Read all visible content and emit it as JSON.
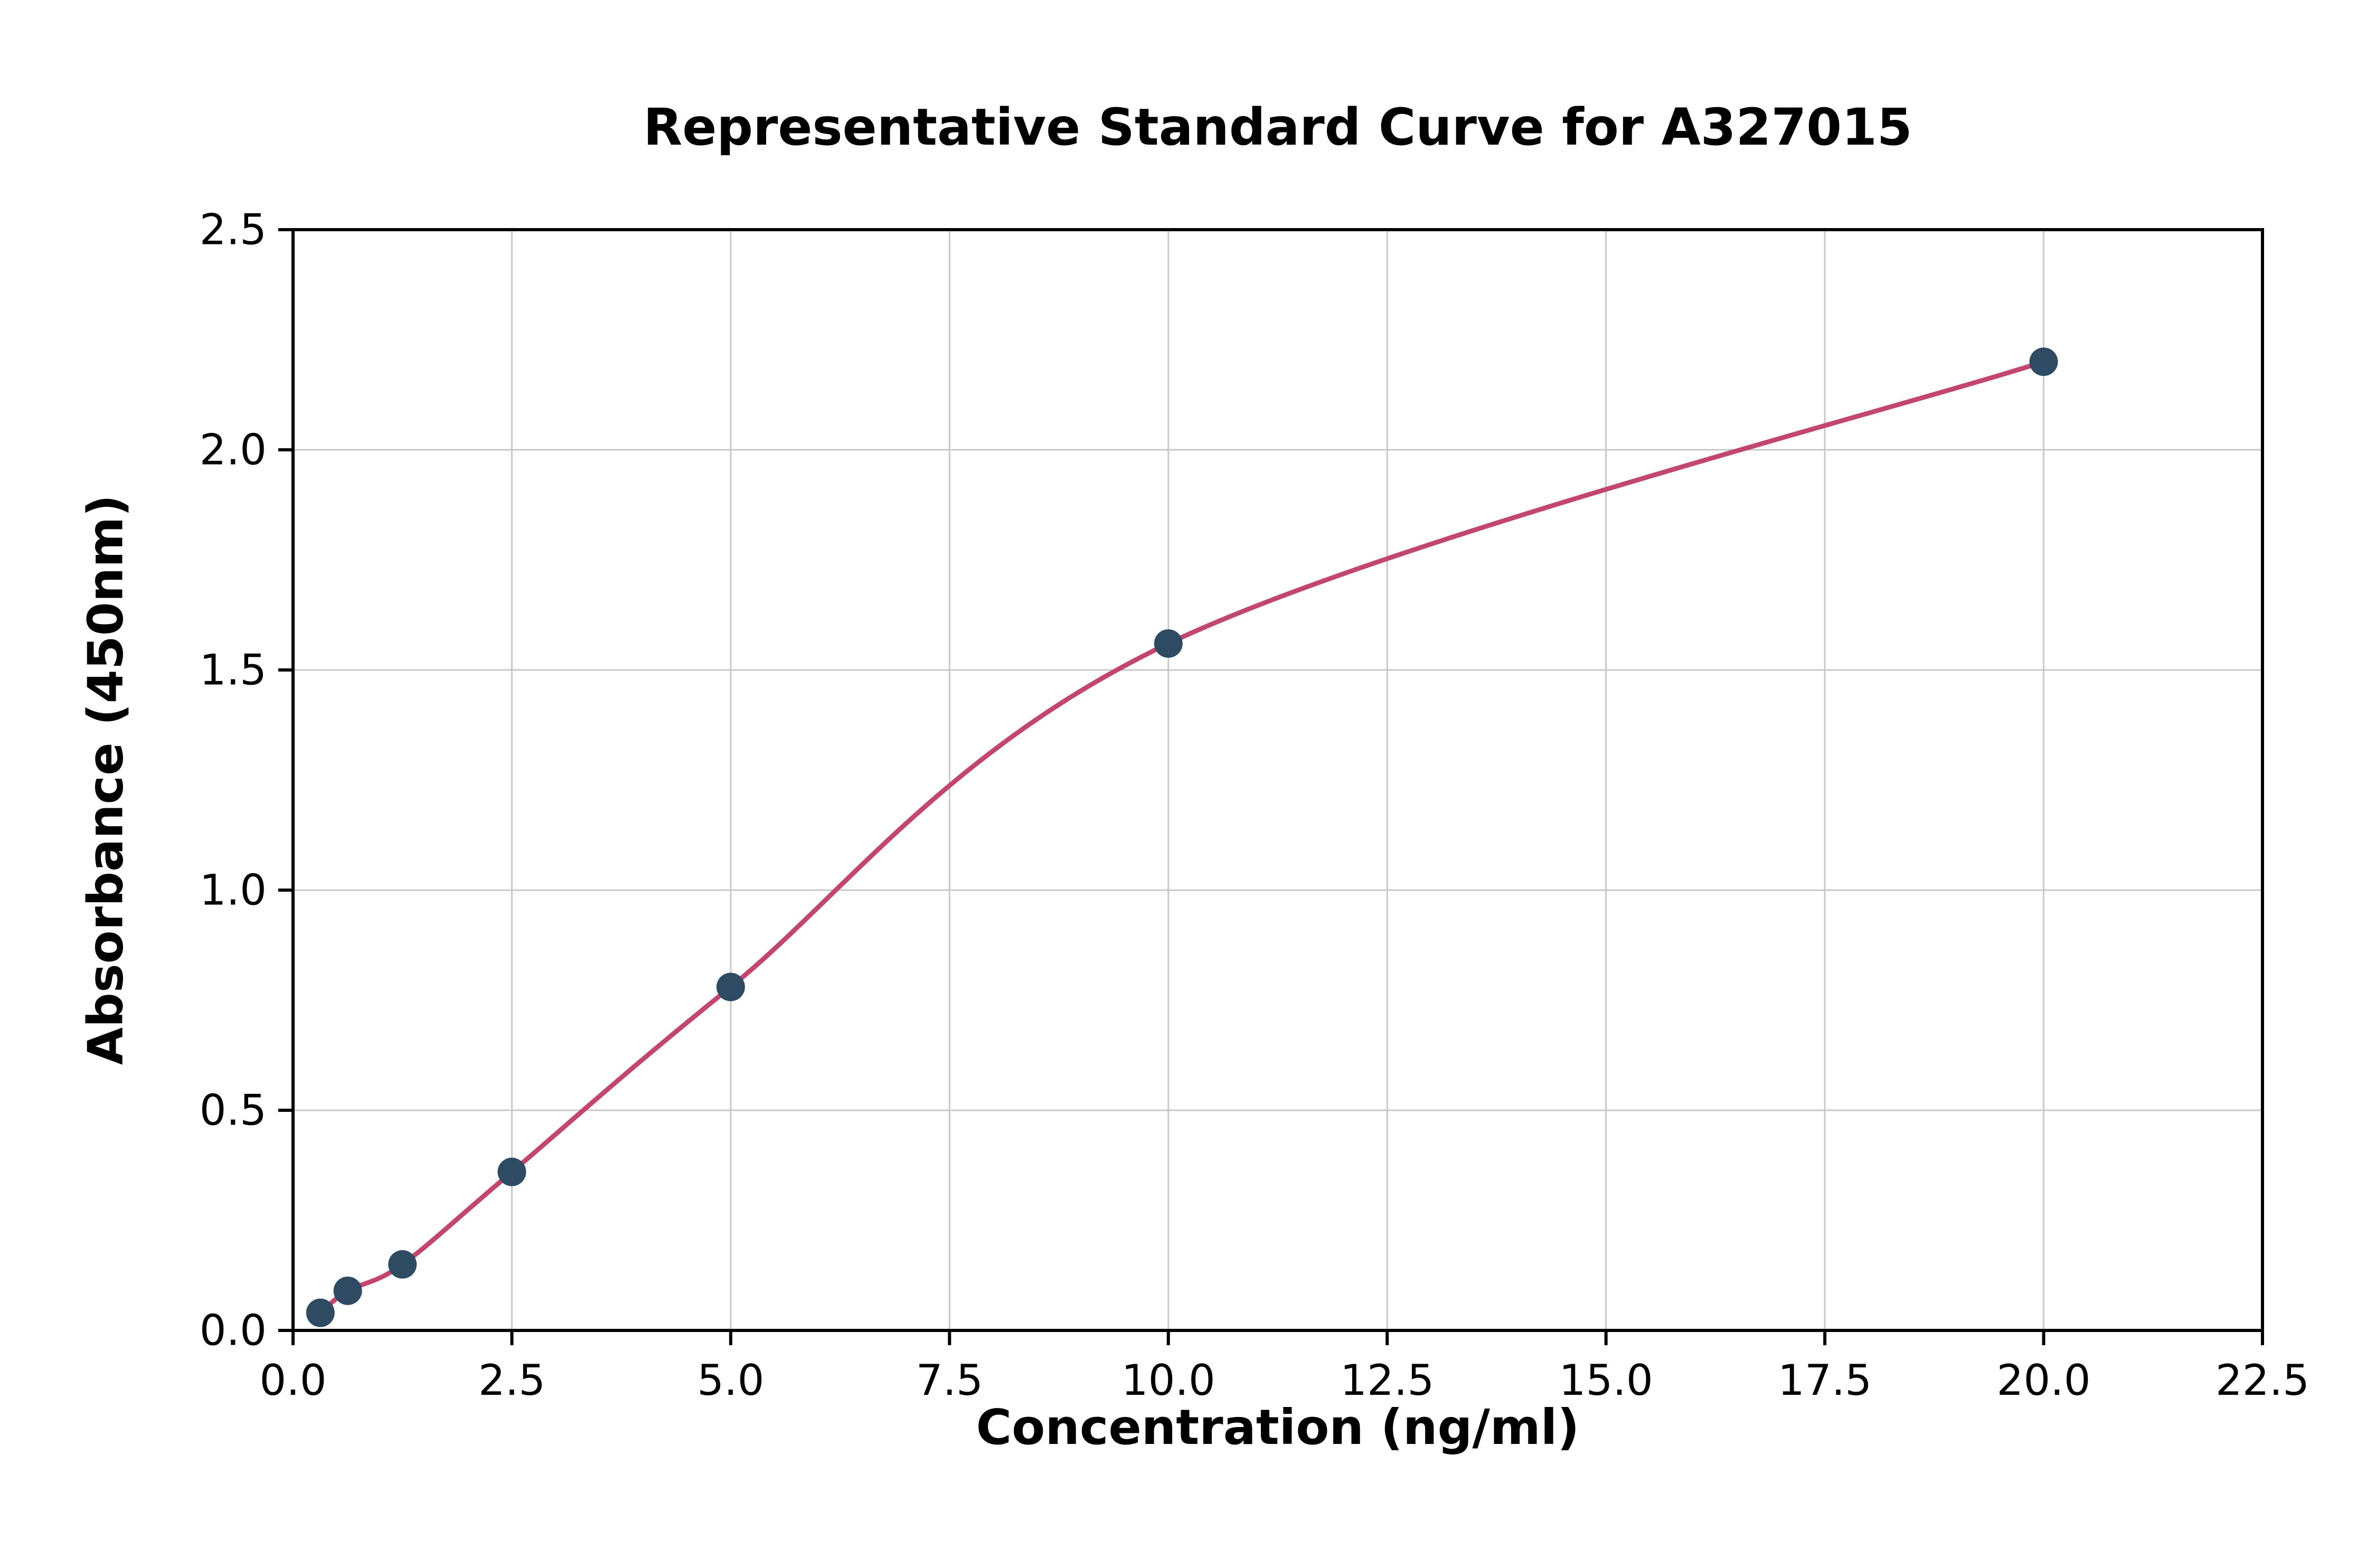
{
  "chart_data": {
    "type": "scatter",
    "title": "Representative Standard Curve for A327015",
    "xlabel": "Concentration (ng/ml)",
    "ylabel": "Absorbance (450nm)",
    "xlim": [
      0,
      22.5
    ],
    "ylim": [
      0,
      2.5
    ],
    "xticks": [
      0,
      2.5,
      5,
      7.5,
      10,
      12.5,
      15,
      17.5,
      20,
      22.5
    ],
    "yticks": [
      0,
      0.5,
      1.0,
      1.5,
      2.0,
      2.5
    ],
    "grid": true,
    "legend": "none",
    "series": [
      {
        "name": "standard-points",
        "x": [
          0.3125,
          0.625,
          1.25,
          2.5,
          5,
          10,
          20
        ],
        "y": [
          0.04,
          0.09,
          0.15,
          0.36,
          0.78,
          1.56,
          2.2
        ]
      }
    ],
    "fit_curve": "4-parameter-logistic through points",
    "colors": {
      "curve": "#c2476e",
      "point": "#2f4b63",
      "grid": "#c8c8c8",
      "axis": "#000000",
      "background": "#ffffff"
    }
  }
}
